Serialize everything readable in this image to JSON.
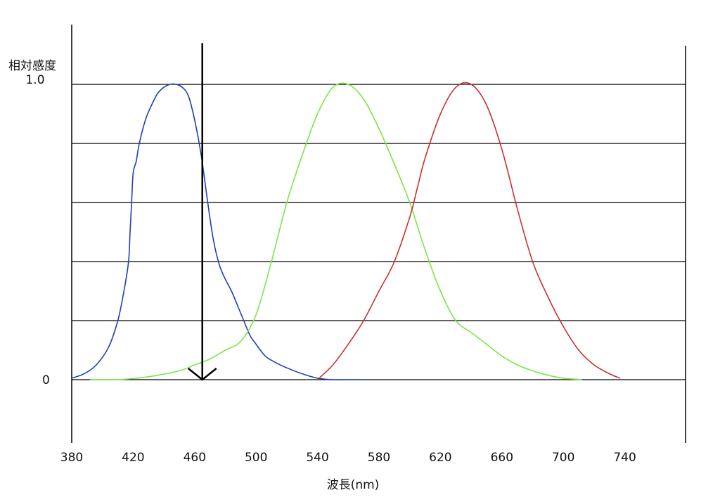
{
  "chart_data": {
    "type": "line",
    "title": "",
    "xlabel": "波長(nm)",
    "ylabel": "相対感度",
    "xlim": [
      380,
      780
    ],
    "ylim": [
      -0.2,
      1.0
    ],
    "x_ticks": [
      380,
      420,
      460,
      500,
      540,
      580,
      620,
      660,
      700,
      740
    ],
    "y_tick_labels": [
      {
        "value": 1.0,
        "label": "1.0"
      },
      {
        "value": 0,
        "label": "0"
      }
    ],
    "gridlines_y": [
      0,
      0.2,
      0.4,
      0.6,
      0.8,
      1.0
    ],
    "grid": true,
    "legend": "none",
    "series": [
      {
        "color": "#1f3fb5",
        "x": [
          380,
          388,
          396,
          404,
          410,
          414,
          417,
          418,
          419,
          420,
          422,
          424,
          428,
          432,
          436,
          440,
          444,
          448,
          452,
          456,
          460,
          464,
          468,
          472,
          476,
          480,
          484,
          488,
          492,
          496,
          500,
          506,
          512,
          520,
          530,
          540,
          550,
          560,
          570
        ],
        "y": [
          0.005,
          0.02,
          0.05,
          0.11,
          0.2,
          0.3,
          0.4,
          0.5,
          0.6,
          0.7,
          0.74,
          0.8,
          0.88,
          0.93,
          0.97,
          0.99,
          1.0,
          1.0,
          0.99,
          0.96,
          0.88,
          0.77,
          0.62,
          0.48,
          0.39,
          0.34,
          0.3,
          0.25,
          0.2,
          0.15,
          0.12,
          0.08,
          0.06,
          0.04,
          0.02,
          0.005,
          0.0,
          0.0,
          0.0
        ]
      },
      {
        "color": "#7ce64a",
        "x": [
          392,
          410,
          430,
          450,
          460,
          470,
          480,
          490,
          500,
          510,
          520,
          530,
          540,
          550,
          560,
          570,
          580,
          590,
          600,
          610,
          620,
          630,
          640,
          650,
          660,
          670,
          680,
          690,
          700,
          712
        ],
        "y": [
          0.0,
          0.0,
          0.01,
          0.03,
          0.05,
          0.07,
          0.1,
          0.13,
          0.22,
          0.4,
          0.6,
          0.76,
          0.9,
          0.99,
          1.0,
          0.95,
          0.85,
          0.73,
          0.6,
          0.44,
          0.3,
          0.2,
          0.16,
          0.12,
          0.08,
          0.05,
          0.03,
          0.015,
          0.005,
          0.0
        ]
      },
      {
        "color": "#c83232",
        "x": [
          540,
          550,
          560,
          570,
          580,
          590,
          600,
          605,
          610,
          620,
          630,
          640,
          650,
          660,
          670,
          680,
          690,
          700,
          710,
          720,
          730,
          737
        ],
        "y": [
          0.0,
          0.05,
          0.12,
          0.2,
          0.3,
          0.4,
          0.55,
          0.65,
          0.75,
          0.9,
          0.99,
          1.0,
          0.93,
          0.78,
          0.58,
          0.4,
          0.28,
          0.18,
          0.1,
          0.05,
          0.02,
          0.005
        ]
      }
    ],
    "annotations": [
      {
        "type": "arrow",
        "color": "#000000",
        "x": 465,
        "from_y": 1.14,
        "to_y": 0
      }
    ]
  }
}
